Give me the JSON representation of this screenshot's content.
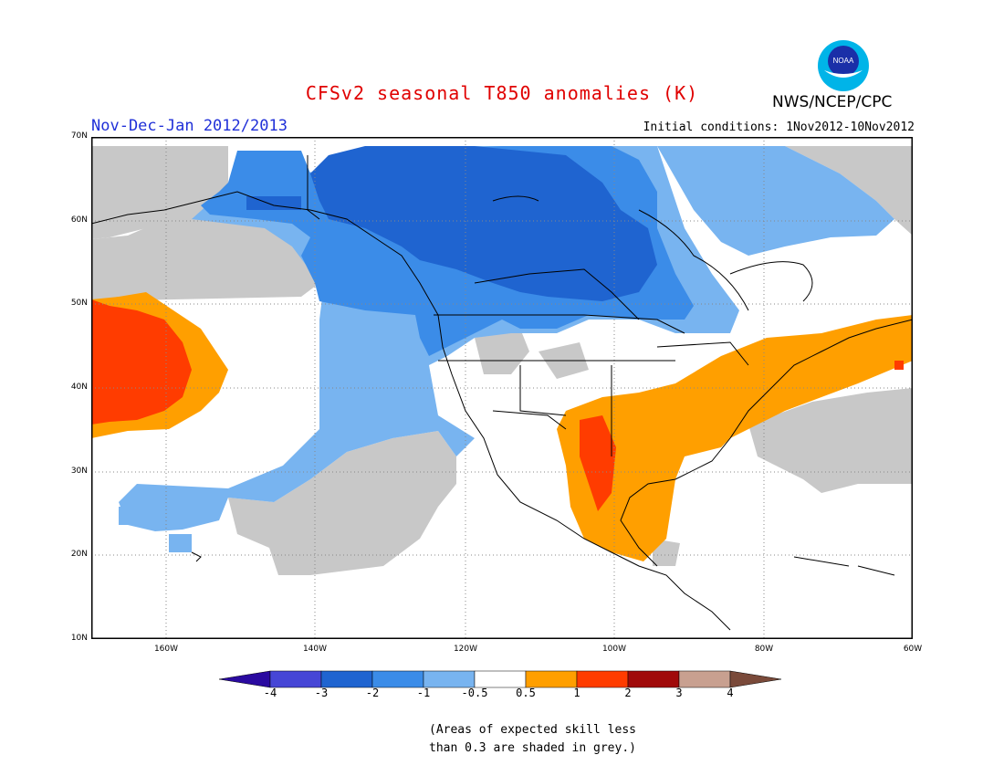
{
  "header": {
    "title": "CFSv2 seasonal T850 anomalies (K)",
    "season": "Nov-Dec-Jan 2012/2013",
    "initial_conditions": "Initial conditions: 1Nov2012-10Nov2012",
    "agency": "NWS/NCEP/CPC",
    "logo_text": "NOAA"
  },
  "map": {
    "lat_labels": [
      "70N",
      "60N",
      "50N",
      "40N",
      "30N",
      "20N",
      "10N"
    ],
    "lon_labels": [
      "160W",
      "140W",
      "120W",
      "100W",
      "80W",
      "60W"
    ],
    "colors": {
      "strong_neg": "#1f64d0",
      "mid_neg": "#3b8ce8",
      "weak_neg": "#78b4f0",
      "grey_low_skill": "#c8c8c8",
      "weak_pos": "#ff9f00",
      "mid_pos": "#ff3c00",
      "land_line": "#000000"
    }
  },
  "colorbar": {
    "labels": [
      "-4",
      "-3",
      "-2",
      "-1",
      "-0.5",
      "0.5",
      "1",
      "2",
      "3",
      "4"
    ],
    "colors": [
      "#2a0aa0",
      "#4646d6",
      "#1f64d0",
      "#3b8ce8",
      "#78b4f0",
      "#ffffff",
      "#ff9f00",
      "#ff3c00",
      "#a00a0a",
      "#c8a090",
      "#7a4a3a"
    ]
  },
  "footnote": {
    "line1": "(Areas of expected skill less",
    "line2": "than 0.3 are shaded in grey.)"
  }
}
